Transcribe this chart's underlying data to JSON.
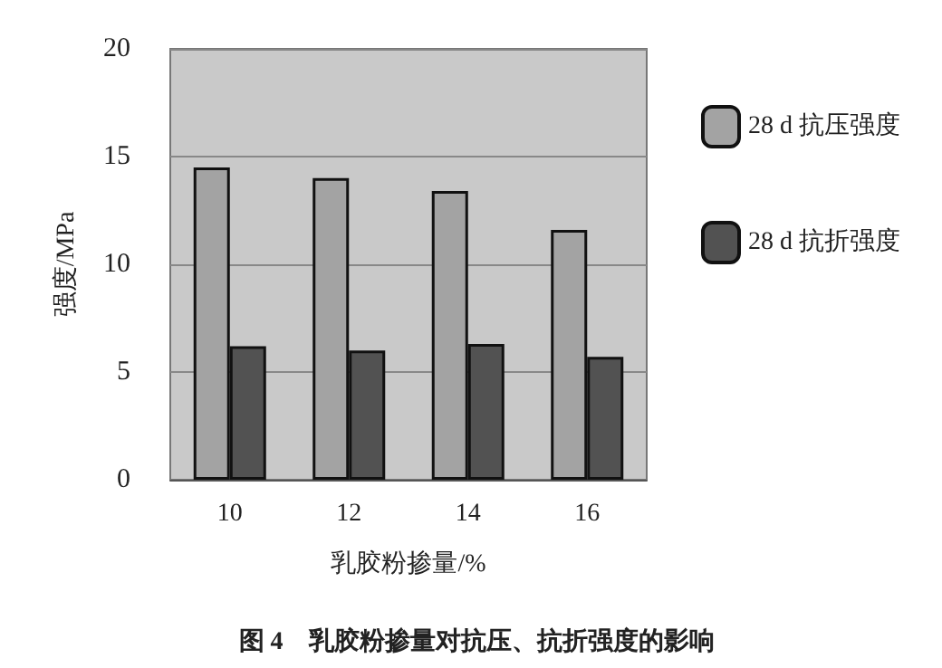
{
  "chart_data": {
    "type": "bar",
    "title": "图 4　乳胶粉掺量对抗压、抗折强度的影响",
    "xlabel": "乳胶粉掺量/%",
    "ylabel": "强度/MPa",
    "categories": [
      "10",
      "12",
      "14",
      "16"
    ],
    "series": [
      {
        "name": "28 d 抗压强度",
        "color": "#a3a3a3",
        "values": [
          14.5,
          14.0,
          13.4,
          11.6
        ]
      },
      {
        "name": "28 d 抗折强度",
        "color": "#525252",
        "values": [
          6.2,
          6.0,
          6.3,
          5.7
        ]
      }
    ],
    "ylim": [
      0,
      20
    ],
    "yticks": [
      0,
      5,
      10,
      15,
      20
    ],
    "grid": "y",
    "legend": "right"
  }
}
